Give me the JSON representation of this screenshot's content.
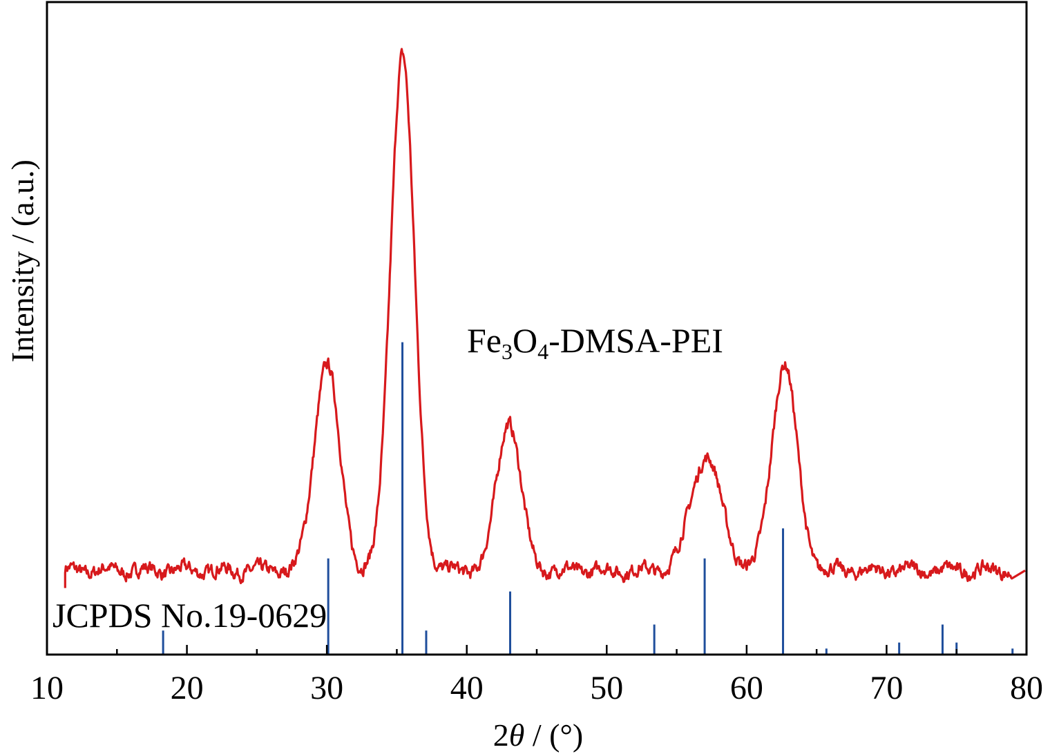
{
  "chart_data": {
    "type": "line",
    "xlabel": "2θ / (°)",
    "xlabel_parts": {
      "var_prefix": "2",
      "var_symbol": "θ",
      "unit": " / (°)"
    },
    "ylabel": "Intensity / (a.u.)",
    "xlim": [
      10,
      80
    ],
    "ylim": [
      0,
      100
    ],
    "x_ticks": [
      "10",
      "20",
      "30",
      "40",
      "50",
      "60",
      "70",
      "80"
    ],
    "y_tick_labels_shown": false,
    "grid": false,
    "annotations": [
      {
        "text": "Fe3O4-DMSA-PEI",
        "parts": [
          "Fe",
          "3",
          "O",
          "4",
          "-DMSA-PEI"
        ],
        "placement": "center, above the pattern"
      },
      {
        "text": "JCPDS No.19-0629",
        "placement": "bottom-left"
      }
    ],
    "series": [
      {
        "style": "curve",
        "color": "#d7191c",
        "baseline": 14,
        "x_start": 11.3,
        "x_end": 79.0,
        "peaks": [
          {
            "x": 30.0,
            "y": 48.5,
            "width": 0.9
          },
          {
            "x": 35.4,
            "y": 100.0,
            "width": 0.85
          },
          {
            "x": 43.0,
            "y": 39.0,
            "width": 0.85
          },
          {
            "x": 57.1,
            "y": 33.0,
            "width": 1.1
          },
          {
            "x": 62.7,
            "y": 48.5,
            "width": 0.9
          }
        ]
      },
      {
        "style": "sticks",
        "color": "#1f4e9c",
        "x": [
          18.3,
          30.1,
          35.4,
          37.1,
          43.1,
          53.4,
          57.0,
          62.6,
          65.7,
          70.9,
          74.0,
          75.0,
          79.0
        ],
        "y": [
          4.0,
          16.0,
          52.0,
          4.0,
          10.5,
          5.0,
          16.0,
          21.0,
          1.0,
          2.0,
          5.0,
          2.0,
          1.0
        ]
      }
    ]
  }
}
